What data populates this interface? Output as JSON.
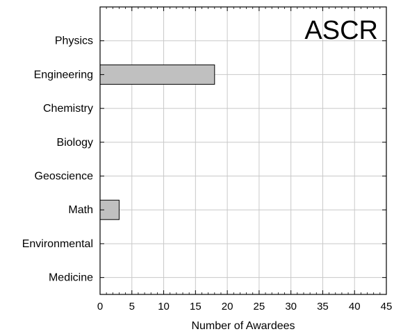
{
  "chart_data": {
    "type": "bar",
    "orientation": "horizontal",
    "title": "ASCR",
    "xlabel": "Number of Awardees",
    "ylabel": "",
    "categories": [
      "Physics",
      "Engineering",
      "Chemistry",
      "Biology",
      "Geoscience",
      "Math",
      "Environmental",
      "Medicine"
    ],
    "values": [
      0,
      18,
      0,
      0,
      0,
      3,
      0,
      0
    ],
    "xlim": [
      0,
      45
    ],
    "xticks": [
      0,
      5,
      10,
      15,
      20,
      25,
      30,
      35,
      40,
      45
    ],
    "grid": true,
    "bar_color": "#c0c0c0",
    "bar_edge_color": "#000000"
  }
}
